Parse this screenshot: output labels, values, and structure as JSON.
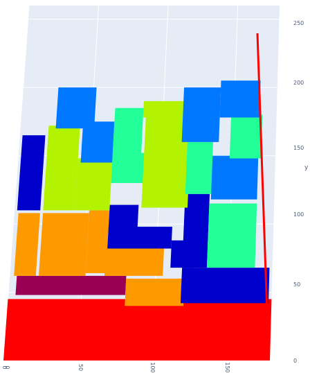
{
  "chart_data": {
    "type": "3d-bar-packing",
    "title": "",
    "xlabel": "",
    "ylabel": "y",
    "x_ticks": [
      "0",
      "0",
      "50",
      "100",
      "150"
    ],
    "y_ticks": [
      "0",
      "50",
      "100",
      "150",
      "200",
      "250"
    ],
    "xlim": [
      0,
      180
    ],
    "ylim": [
      0,
      260
    ],
    "grid": true,
    "colors": {
      "background_plane": "#e5ecf6",
      "grid": "#ffffff",
      "red": "#ff0000",
      "maroon": "#990055",
      "orange": "#ff9900",
      "blue": "#0000cc",
      "lime": "#b3f200",
      "mint": "#22ff99",
      "azure": "#0077ff",
      "tick_text": "#4a5c78"
    },
    "boxes": [
      {
        "x0": 0,
        "x1": 180,
        "y0": 0,
        "y1": 45,
        "color": "red"
      },
      {
        "x0": 5,
        "x1": 80,
        "y0": 48,
        "y1": 62,
        "color": "maroon"
      },
      {
        "x0": 80,
        "x1": 120,
        "y0": 40,
        "y1": 60,
        "color": "orange"
      },
      {
        "x0": 118,
        "x1": 178,
        "y0": 42,
        "y1": 68,
        "color": "blue"
      },
      {
        "x0": 3,
        "x1": 18,
        "y0": 62,
        "y1": 108,
        "color": "orange"
      },
      {
        "x0": 20,
        "x1": 52,
        "y0": 62,
        "y1": 108,
        "color": "orange"
      },
      {
        "x0": 52,
        "x1": 66,
        "y0": 64,
        "y1": 110,
        "color": "orange"
      },
      {
        "x0": 65,
        "x1": 105,
        "y0": 62,
        "y1": 83,
        "color": "orange"
      },
      {
        "x0": 66,
        "x1": 110,
        "y0": 82,
        "y1": 98,
        "color": "blue"
      },
      {
        "x0": 66,
        "x1": 86,
        "y0": 96,
        "y1": 114,
        "color": "blue"
      },
      {
        "x0": 110,
        "x1": 125,
        "y0": 68,
        "y1": 88,
        "color": "blue"
      },
      {
        "x0": 118,
        "x1": 135,
        "y0": 68,
        "y1": 122,
        "color": "blue"
      },
      {
        "x0": 135,
        "x1": 168,
        "y0": 68,
        "y1": 115,
        "color": "mint"
      },
      {
        "x0": 2,
        "x1": 18,
        "y0": 110,
        "y1": 165,
        "color": "blue"
      },
      {
        "x0": 20,
        "x1": 42,
        "y0": 110,
        "y1": 172,
        "color": "lime"
      },
      {
        "x0": 42,
        "x1": 66,
        "y0": 110,
        "y1": 148,
        "color": "lime"
      },
      {
        "x0": 66,
        "x1": 94,
        "y0": 130,
        "y1": 152,
        "color": "mint"
      },
      {
        "x0": 88,
        "x1": 120,
        "y0": 112,
        "y1": 148,
        "color": "lime"
      },
      {
        "x0": 88,
        "x1": 118,
        "y0": 148,
        "y1": 178,
        "color": "lime"
      },
      {
        "x0": 118,
        "x1": 136,
        "y0": 122,
        "y1": 160,
        "color": "mint"
      },
      {
        "x0": 136,
        "x1": 168,
        "y0": 118,
        "y1": 150,
        "color": "azure"
      },
      {
        "x0": 148,
        "x1": 170,
        "y0": 148,
        "y1": 180,
        "color": "mint"
      },
      {
        "x0": 25,
        "x1": 52,
        "y0": 170,
        "y1": 200,
        "color": "azure"
      },
      {
        "x0": 44,
        "x1": 66,
        "y0": 145,
        "y1": 175,
        "color": "azure"
      },
      {
        "x0": 66,
        "x1": 86,
        "y0": 150,
        "y1": 185,
        "color": "mint"
      },
      {
        "x0": 86,
        "x1": 114,
        "y0": 178,
        "y1": 190,
        "color": "lime"
      },
      {
        "x0": 114,
        "x1": 140,
        "y0": 160,
        "y1": 200,
        "color": "azure"
      },
      {
        "x0": 140,
        "x1": 168,
        "y0": 178,
        "y1": 205,
        "color": "azure"
      }
    ],
    "vertical_line": {
      "x": 178,
      "y0": 0,
      "y1": 250,
      "color": "red"
    }
  }
}
